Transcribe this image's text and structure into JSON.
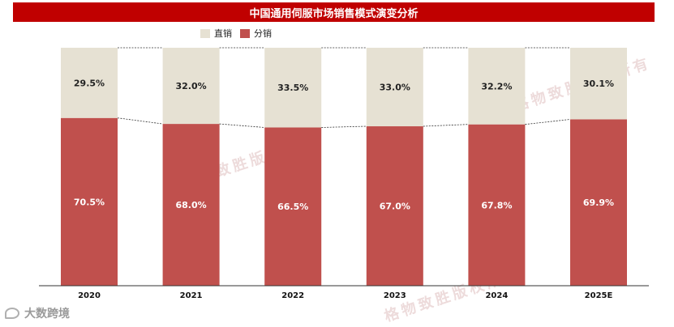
{
  "title": "中国通用伺服市场销售模式演变分析",
  "brand_text": "大数跨境",
  "watermark_text": "格物致胜版权所有",
  "colors": {
    "title_bg": "#c00000",
    "direct": "#e6e1d3",
    "distribution": "#c0504d",
    "axis": "#333333"
  },
  "chart_data": {
    "type": "bar",
    "stacked": true,
    "percent_stacked": true,
    "categories": [
      "2020",
      "2021",
      "2022",
      "2023",
      "2024",
      "2025E"
    ],
    "series": [
      {
        "name": "分销",
        "values": [
          70.5,
          68.0,
          66.5,
          67.0,
          67.8,
          69.9
        ],
        "labels": [
          "70.5%",
          "68.0%",
          "66.5%",
          "67.0%",
          "67.8%",
          "69.9%"
        ]
      },
      {
        "name": "直销",
        "values": [
          29.5,
          32.0,
          33.5,
          33.0,
          32.2,
          30.1
        ],
        "labels": [
          "29.5%",
          "32.0%",
          "33.5%",
          "33.0%",
          "32.2%",
          "30.1%"
        ]
      }
    ],
    "ylim": [
      0,
      100
    ],
    "legend_position": "top-left",
    "series_lines": true,
    "grid": false
  }
}
